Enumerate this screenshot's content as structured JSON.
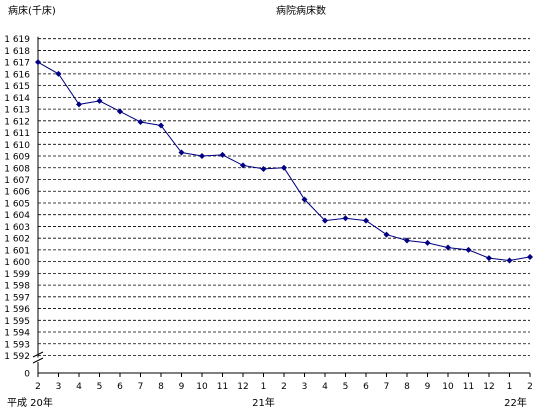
{
  "chart_data": {
    "type": "line",
    "title": "病院病床数",
    "ylabel": "病床(千床)",
    "ylim": [
      1592,
      1619
    ],
    "y_ticks": [
      "1 592",
      "1 593",
      "1 594",
      "1 595",
      "1 596",
      "1 597",
      "1 598",
      "1 599",
      "1 600",
      "1 601",
      "1 602",
      "1 603",
      "1 604",
      "1 605",
      "1 606",
      "1 607",
      "1 608",
      "1 609",
      "1 610",
      "1 611",
      "1 612",
      "1 613",
      "1 614",
      "1 615",
      "1 616",
      "1 617",
      "1 618",
      "1 619"
    ],
    "y_zero_label": "0",
    "grid": true,
    "axis_break": true,
    "categories": [
      "2",
      "3",
      "4",
      "5",
      "6",
      "7",
      "8",
      "9",
      "10",
      "11",
      "12",
      "1",
      "2",
      "3",
      "4",
      "5",
      "6",
      "7",
      "8",
      "9",
      "10",
      "11",
      "12",
      "1",
      "2"
    ],
    "year_labels": [
      {
        "index": 0,
        "text": "平成 20年"
      },
      {
        "index": 11,
        "text": "21年"
      },
      {
        "index": 23,
        "text": "22年"
      }
    ],
    "series": [
      {
        "color": "#000080",
        "values": [
          1617.0,
          1616.0,
          1613.4,
          1613.7,
          1612.8,
          1611.9,
          1611.6,
          1609.3,
          1609.0,
          1609.1,
          1608.2,
          1607.9,
          1608.0,
          1605.3,
          1603.5,
          1603.7,
          1603.5,
          1602.3,
          1601.8,
          1601.6,
          1601.2,
          1601.0,
          1600.3,
          1600.1,
          1600.4
        ]
      }
    ]
  }
}
